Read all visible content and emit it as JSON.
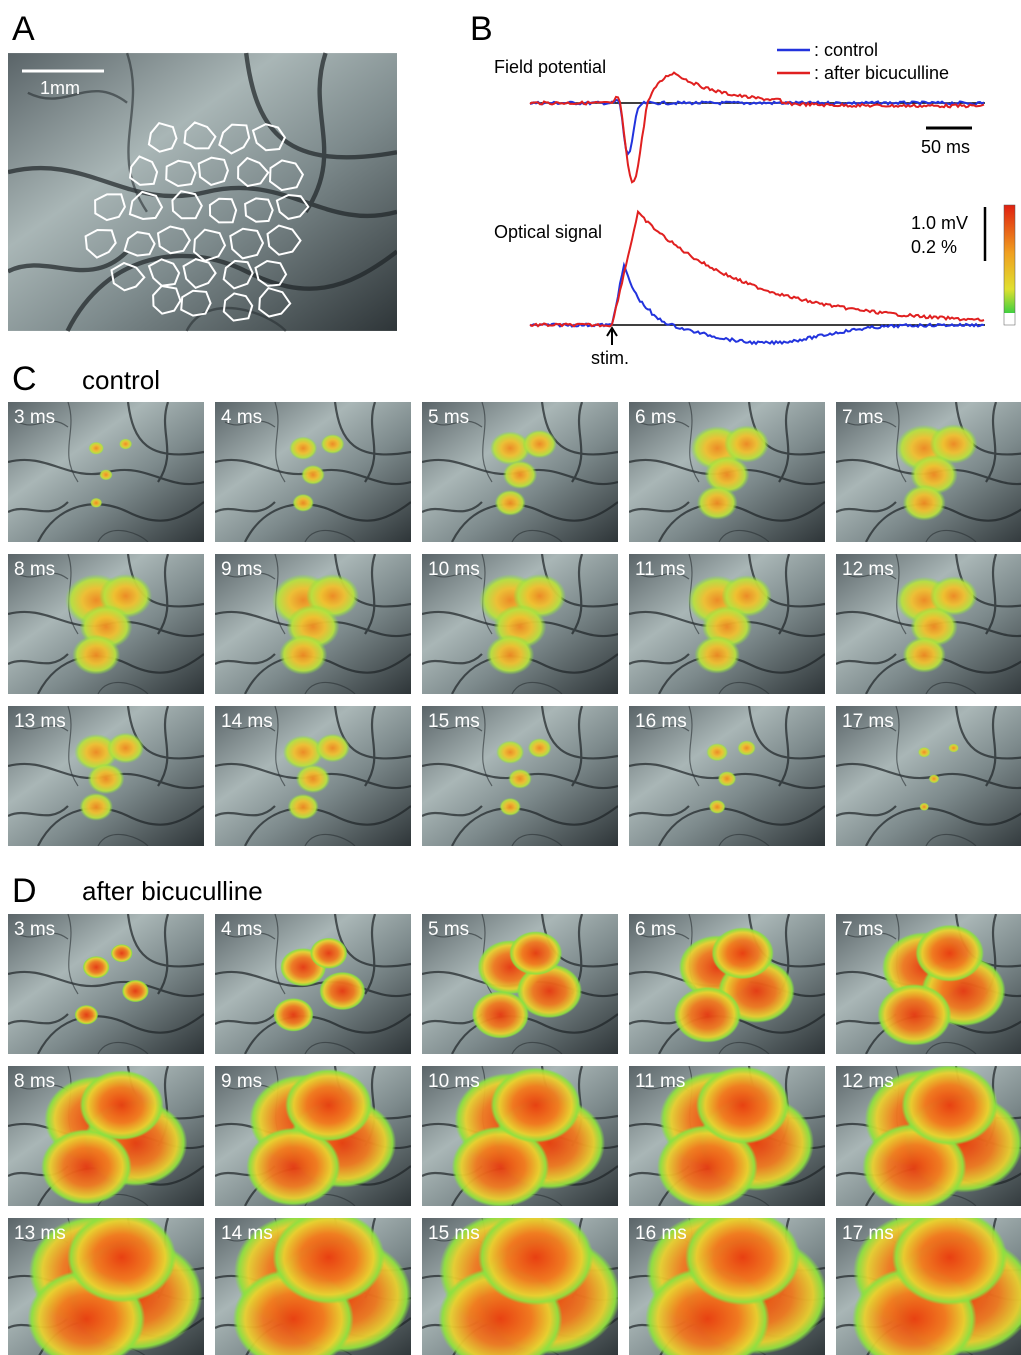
{
  "panels": {
    "A": {
      "label": "A",
      "scale_bar": "1mm"
    },
    "B": {
      "label": "B",
      "field_potential": "Field potential",
      "optical_signal": "Optical signal",
      "legend": [
        ": control",
        ": after bicuculline"
      ],
      "time_scale": "50 ms",
      "voltage_scale": "1.0 mV",
      "optical_scale": "0.2 %",
      "stimulus": "stim."
    },
    "C": {
      "label": "C",
      "title": "control",
      "frames": [
        "3 ms",
        "4 ms",
        "5 ms",
        "6 ms",
        "7 ms",
        "8 ms",
        "9 ms",
        "10 ms",
        "11 ms",
        "12 ms",
        "13 ms",
        "14 ms",
        "15 ms",
        "16 ms",
        "17 ms"
      ]
    },
    "D": {
      "label": "D",
      "title": "after bicuculline",
      "frames": [
        "3 ms",
        "4 ms",
        "5 ms",
        "6 ms",
        "7 ms",
        "8 ms",
        "9 ms",
        "10 ms",
        "11 ms",
        "12 ms",
        "13 ms",
        "14 ms",
        "15 ms",
        "16 ms",
        "17 ms"
      ]
    }
  }
}
